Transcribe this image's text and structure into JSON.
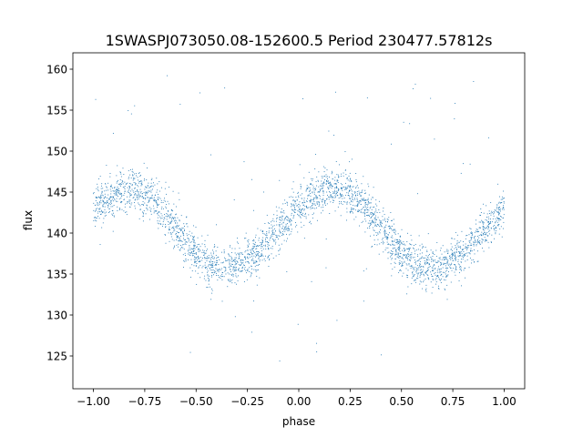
{
  "chart_data": {
    "type": "scatter",
    "title": "1SWASPJ073050.08-152600.5 Period 230477.57812s",
    "xlabel": "phase",
    "ylabel": "flux",
    "xlim": [
      -1.1,
      1.1
    ],
    "ylim": [
      121,
      162
    ],
    "xticks": [
      -1.0,
      -0.75,
      -0.5,
      -0.25,
      0.0,
      0.25,
      0.5,
      0.75,
      1.0
    ],
    "xtick_labels": [
      "−1.00",
      "−0.75",
      "−0.50",
      "−0.25",
      "0.00",
      "0.25",
      "0.50",
      "0.75",
      "1.00"
    ],
    "yticks": [
      125,
      130,
      135,
      140,
      145,
      150,
      155,
      160
    ],
    "ytick_labels": [
      "125",
      "130",
      "135",
      "140",
      "145",
      "150",
      "155",
      "160"
    ],
    "grid": false,
    "series": [
      {
        "color": "#1f77b4",
        "model": {
          "phase_range": [
            -1.0,
            1.0
          ],
          "period_in_phase": 1.0,
          "mean_flux": 140.5,
          "amplitude": 4.8,
          "peak_phase": 0.18,
          "min_phase": 0.63,
          "scatter_sigma": 1.3,
          "outlier_range": [
            122,
            160
          ],
          "approx_point_count": 3200
        }
      }
    ]
  }
}
